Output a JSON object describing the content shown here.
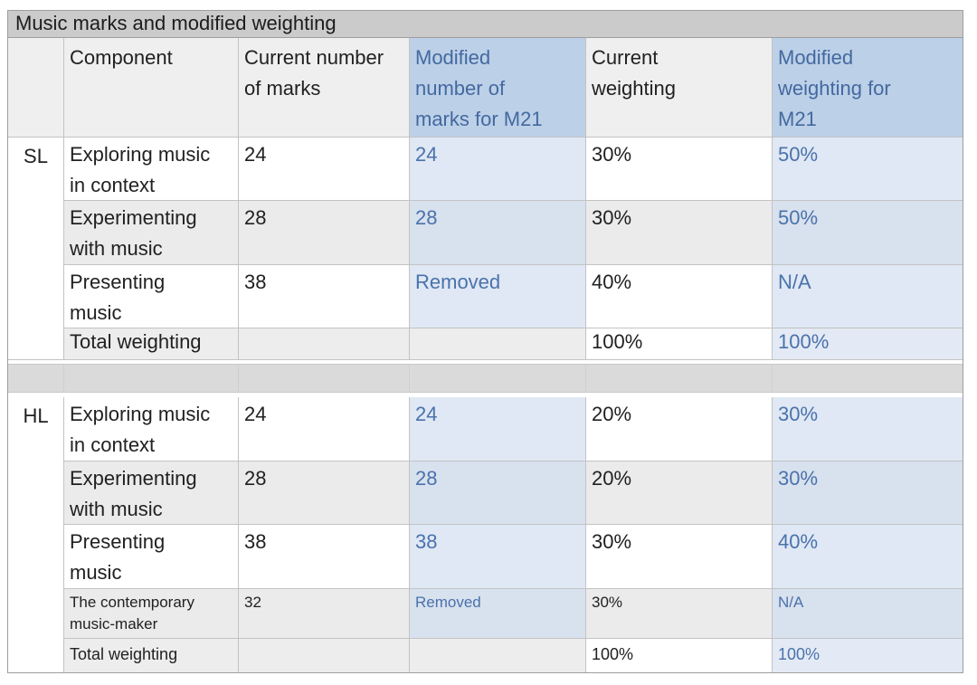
{
  "title": "Music marks and modified weighting",
  "colors": {
    "title_bar_bg": "#cbcbcb",
    "header_gray_bg": "#efefef",
    "header_blue_bg": "#bcd0e8",
    "modified_col_bg": "#dfe8f4",
    "row_alt_bg": "#ebebeb",
    "spacer_bg": "#dadada",
    "blue_text": "#4a72ab",
    "body_text": "#212121"
  },
  "header": {
    "level": "",
    "component": "Component",
    "current_marks": "Current number\nof marks",
    "modified_marks": "Modified\nnumber of\nmarks for M21",
    "current_weighting": "Current\nweighting",
    "modified_weighting": "Modified\nweighting for\nM21"
  },
  "sl": {
    "level": "SL",
    "rows": [
      {
        "component": "Exploring music\nin context",
        "current_marks": "24",
        "modified_marks": "24",
        "current_weighting": "30%",
        "modified_weighting": "50%"
      },
      {
        "component": "Experimenting\nwith music",
        "current_marks": "28",
        "modified_marks": "28",
        "current_weighting": "30%",
        "modified_weighting": "50%"
      },
      {
        "component": "Presenting\nmusic",
        "current_marks": "38",
        "modified_marks": "Removed",
        "current_weighting": "40%",
        "modified_weighting": "N/A"
      }
    ],
    "total": {
      "label": "Total weighting",
      "current_weighting": "100%",
      "modified_weighting": "100%"
    }
  },
  "hl": {
    "level": "HL",
    "rows": [
      {
        "component": "Exploring music\nin context",
        "current_marks": "24",
        "modified_marks": "24",
        "current_weighting": "20%",
        "modified_weighting": "30%"
      },
      {
        "component": "Experimenting\nwith music",
        "current_marks": "28",
        "modified_marks": "28",
        "current_weighting": "20%",
        "modified_weighting": "30%"
      },
      {
        "component": "Presenting\nmusic",
        "current_marks": "38",
        "modified_marks": "38",
        "current_weighting": "30%",
        "modified_weighting": "40%"
      },
      {
        "component": "The contemporary\nmusic-maker",
        "current_marks": "32",
        "modified_marks": "Removed",
        "current_weighting": "30%",
        "modified_weighting": "N/A"
      }
    ],
    "total": {
      "label": "Total weighting",
      "current_weighting": "100%",
      "modified_weighting": "100%"
    }
  }
}
